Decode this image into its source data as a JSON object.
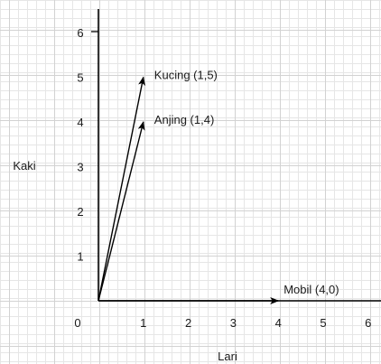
{
  "chart_data": {
    "type": "vector",
    "xlabel": "Lari",
    "ylabel": "Kaki",
    "xlim": [
      0,
      6
    ],
    "ylim": [
      0,
      6
    ],
    "origin_label": "0",
    "x_ticks": [
      "1",
      "2",
      "3",
      "4",
      "5",
      "6"
    ],
    "y_ticks": [
      "1",
      "2",
      "3",
      "4",
      "5",
      "6"
    ],
    "grid": true,
    "vectors": [
      {
        "label": "Kucing (1,5)",
        "x": 1,
        "y": 5
      },
      {
        "label": "Anjing (1,4)",
        "x": 1,
        "y": 4
      },
      {
        "label": "Mobil (4,0)",
        "x": 4,
        "y": 0
      }
    ]
  },
  "colors": {
    "axis": "#000000",
    "grid_minor": "#e6e6e6",
    "grid_major": "#d2d2d2",
    "text": "#1a1a1a"
  }
}
